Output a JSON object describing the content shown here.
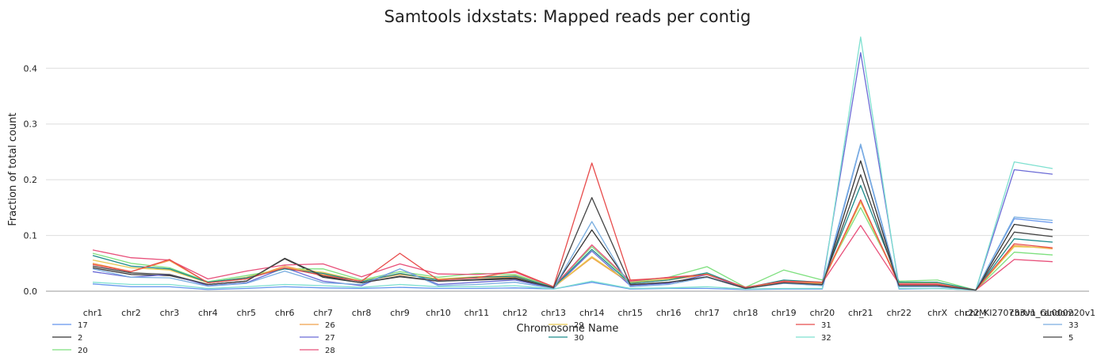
{
  "chart_data": {
    "type": "line",
    "title": "Samtools idxstats: Mapped reads per contig",
    "xlabel": "Chromosome Name",
    "ylabel": "Fraction of total count",
    "ylim": [
      0,
      0.46
    ],
    "yticks": [
      0.0,
      0.1,
      0.2,
      0.3,
      0.4
    ],
    "ytick_labels": [
      "0.0",
      "0.1",
      "0.2",
      "0.3",
      "0.4"
    ],
    "grid": true,
    "legend_position": "bottom",
    "categories": [
      "chr1",
      "chr2",
      "chr3",
      "chr4",
      "chr5",
      "chr6",
      "chr7",
      "chr8",
      "chr9",
      "chr10",
      "chr11",
      "chr12",
      "chr13",
      "chr14",
      "chr15",
      "chr16",
      "chr17",
      "chr18",
      "chr19",
      "chr20",
      "chr21",
      "chr22",
      "chrX",
      "chrM",
      "chr22_KI270733v1_random",
      "chrUn_GL000220v1"
    ],
    "series": [
      {
        "name": "17",
        "color": "#6495ed",
        "values": [
          0.013,
          0.008,
          0.008,
          0.003,
          0.005,
          0.008,
          0.006,
          0.005,
          0.007,
          0.005,
          0.005,
          0.006,
          0.004,
          0.016,
          0.004,
          0.005,
          0.005,
          0.003,
          0.004,
          0.004,
          0.262,
          0.004,
          0.005,
          0.002,
          0.13,
          0.123
        ]
      },
      {
        "name": "2",
        "color": "#333333",
        "values": [
          0.042,
          0.03,
          0.028,
          0.012,
          0.018,
          0.058,
          0.025,
          0.015,
          0.026,
          0.018,
          0.02,
          0.022,
          0.006,
          0.11,
          0.011,
          0.015,
          0.025,
          0.005,
          0.015,
          0.011,
          0.234,
          0.01,
          0.01,
          0.002,
          0.12,
          0.11
        ]
      },
      {
        "name": "20",
        "color": "#7ee07e",
        "values": [
          0.068,
          0.05,
          0.042,
          0.017,
          0.028,
          0.04,
          0.04,
          0.02,
          0.035,
          0.025,
          0.032,
          0.03,
          0.008,
          0.08,
          0.016,
          0.025,
          0.044,
          0.007,
          0.038,
          0.02,
          0.15,
          0.018,
          0.02,
          0.002,
          0.07,
          0.065
        ]
      },
      {
        "name": "26",
        "color": "#f0a04b",
        "values": [
          0.05,
          0.035,
          0.055,
          0.015,
          0.022,
          0.045,
          0.03,
          0.018,
          0.03,
          0.022,
          0.024,
          0.025,
          0.007,
          0.06,
          0.014,
          0.02,
          0.03,
          0.006,
          0.016,
          0.014,
          0.16,
          0.012,
          0.012,
          0.002,
          0.082,
          0.076
        ]
      },
      {
        "name": "27",
        "color": "#6b6bd6",
        "values": [
          0.035,
          0.025,
          0.03,
          0.01,
          0.015,
          0.042,
          0.018,
          0.01,
          0.04,
          0.012,
          0.016,
          0.02,
          0.005,
          0.072,
          0.01,
          0.014,
          0.03,
          0.005,
          0.015,
          0.012,
          0.428,
          0.01,
          0.01,
          0.002,
          0.218,
          0.21
        ]
      },
      {
        "name": "28",
        "color": "#e8507a",
        "values": [
          0.074,
          0.06,
          0.056,
          0.022,
          0.036,
          0.047,
          0.049,
          0.026,
          0.049,
          0.031,
          0.03,
          0.034,
          0.008,
          0.083,
          0.018,
          0.025,
          0.03,
          0.007,
          0.017,
          0.015,
          0.118,
          0.013,
          0.013,
          0.002,
          0.057,
          0.053
        ]
      },
      {
        "name": "29",
        "color": "#e8c850",
        "values": [
          0.056,
          0.042,
          0.038,
          0.015,
          0.025,
          0.042,
          0.034,
          0.018,
          0.032,
          0.022,
          0.026,
          0.028,
          0.007,
          0.062,
          0.015,
          0.022,
          0.032,
          0.006,
          0.018,
          0.015,
          0.16,
          0.015,
          0.015,
          0.002,
          0.08,
          0.078
        ]
      },
      {
        "name": "30",
        "color": "#1e8c8c",
        "values": [
          0.064,
          0.045,
          0.04,
          0.016,
          0.024,
          0.04,
          0.032,
          0.017,
          0.032,
          0.02,
          0.025,
          0.027,
          0.007,
          0.075,
          0.014,
          0.02,
          0.033,
          0.006,
          0.02,
          0.016,
          0.19,
          0.016,
          0.016,
          0.002,
          0.094,
          0.088
        ]
      },
      {
        "name": "31",
        "color": "#e84c4c",
        "values": [
          0.048,
          0.035,
          0.057,
          0.015,
          0.022,
          0.042,
          0.028,
          0.018,
          0.068,
          0.02,
          0.024,
          0.036,
          0.008,
          0.23,
          0.02,
          0.024,
          0.03,
          0.007,
          0.018,
          0.016,
          0.164,
          0.012,
          0.012,
          0.002,
          0.085,
          0.078
        ]
      },
      {
        "name": "32",
        "color": "#7ee0d0",
        "values": [
          0.016,
          0.012,
          0.012,
          0.005,
          0.008,
          0.012,
          0.01,
          0.007,
          0.012,
          0.008,
          0.008,
          0.01,
          0.004,
          0.018,
          0.005,
          0.006,
          0.008,
          0.004,
          0.005,
          0.005,
          0.456,
          0.005,
          0.005,
          0.002,
          0.232,
          0.22
        ]
      },
      {
        "name": "33",
        "color": "#7aaee0",
        "values": [
          0.04,
          0.025,
          0.024,
          0.009,
          0.014,
          0.036,
          0.015,
          0.012,
          0.04,
          0.01,
          0.012,
          0.016,
          0.005,
          0.125,
          0.008,
          0.012,
          0.025,
          0.005,
          0.014,
          0.01,
          0.264,
          0.008,
          0.008,
          0.002,
          0.133,
          0.127
        ]
      },
      {
        "name": "5",
        "color": "#444444",
        "values": [
          0.045,
          0.033,
          0.03,
          0.012,
          0.018,
          0.059,
          0.027,
          0.015,
          0.027,
          0.018,
          0.021,
          0.024,
          0.006,
          0.168,
          0.012,
          0.016,
          0.026,
          0.005,
          0.015,
          0.012,
          0.209,
          0.01,
          0.01,
          0.002,
          0.106,
          0.098
        ]
      }
    ],
    "legend_groups": [
      [
        "17",
        "2",
        "20"
      ],
      [
        "26",
        "27",
        "28"
      ],
      [
        "29",
        "30"
      ],
      [
        "31",
        "32"
      ],
      [
        "33",
        "5"
      ]
    ]
  }
}
